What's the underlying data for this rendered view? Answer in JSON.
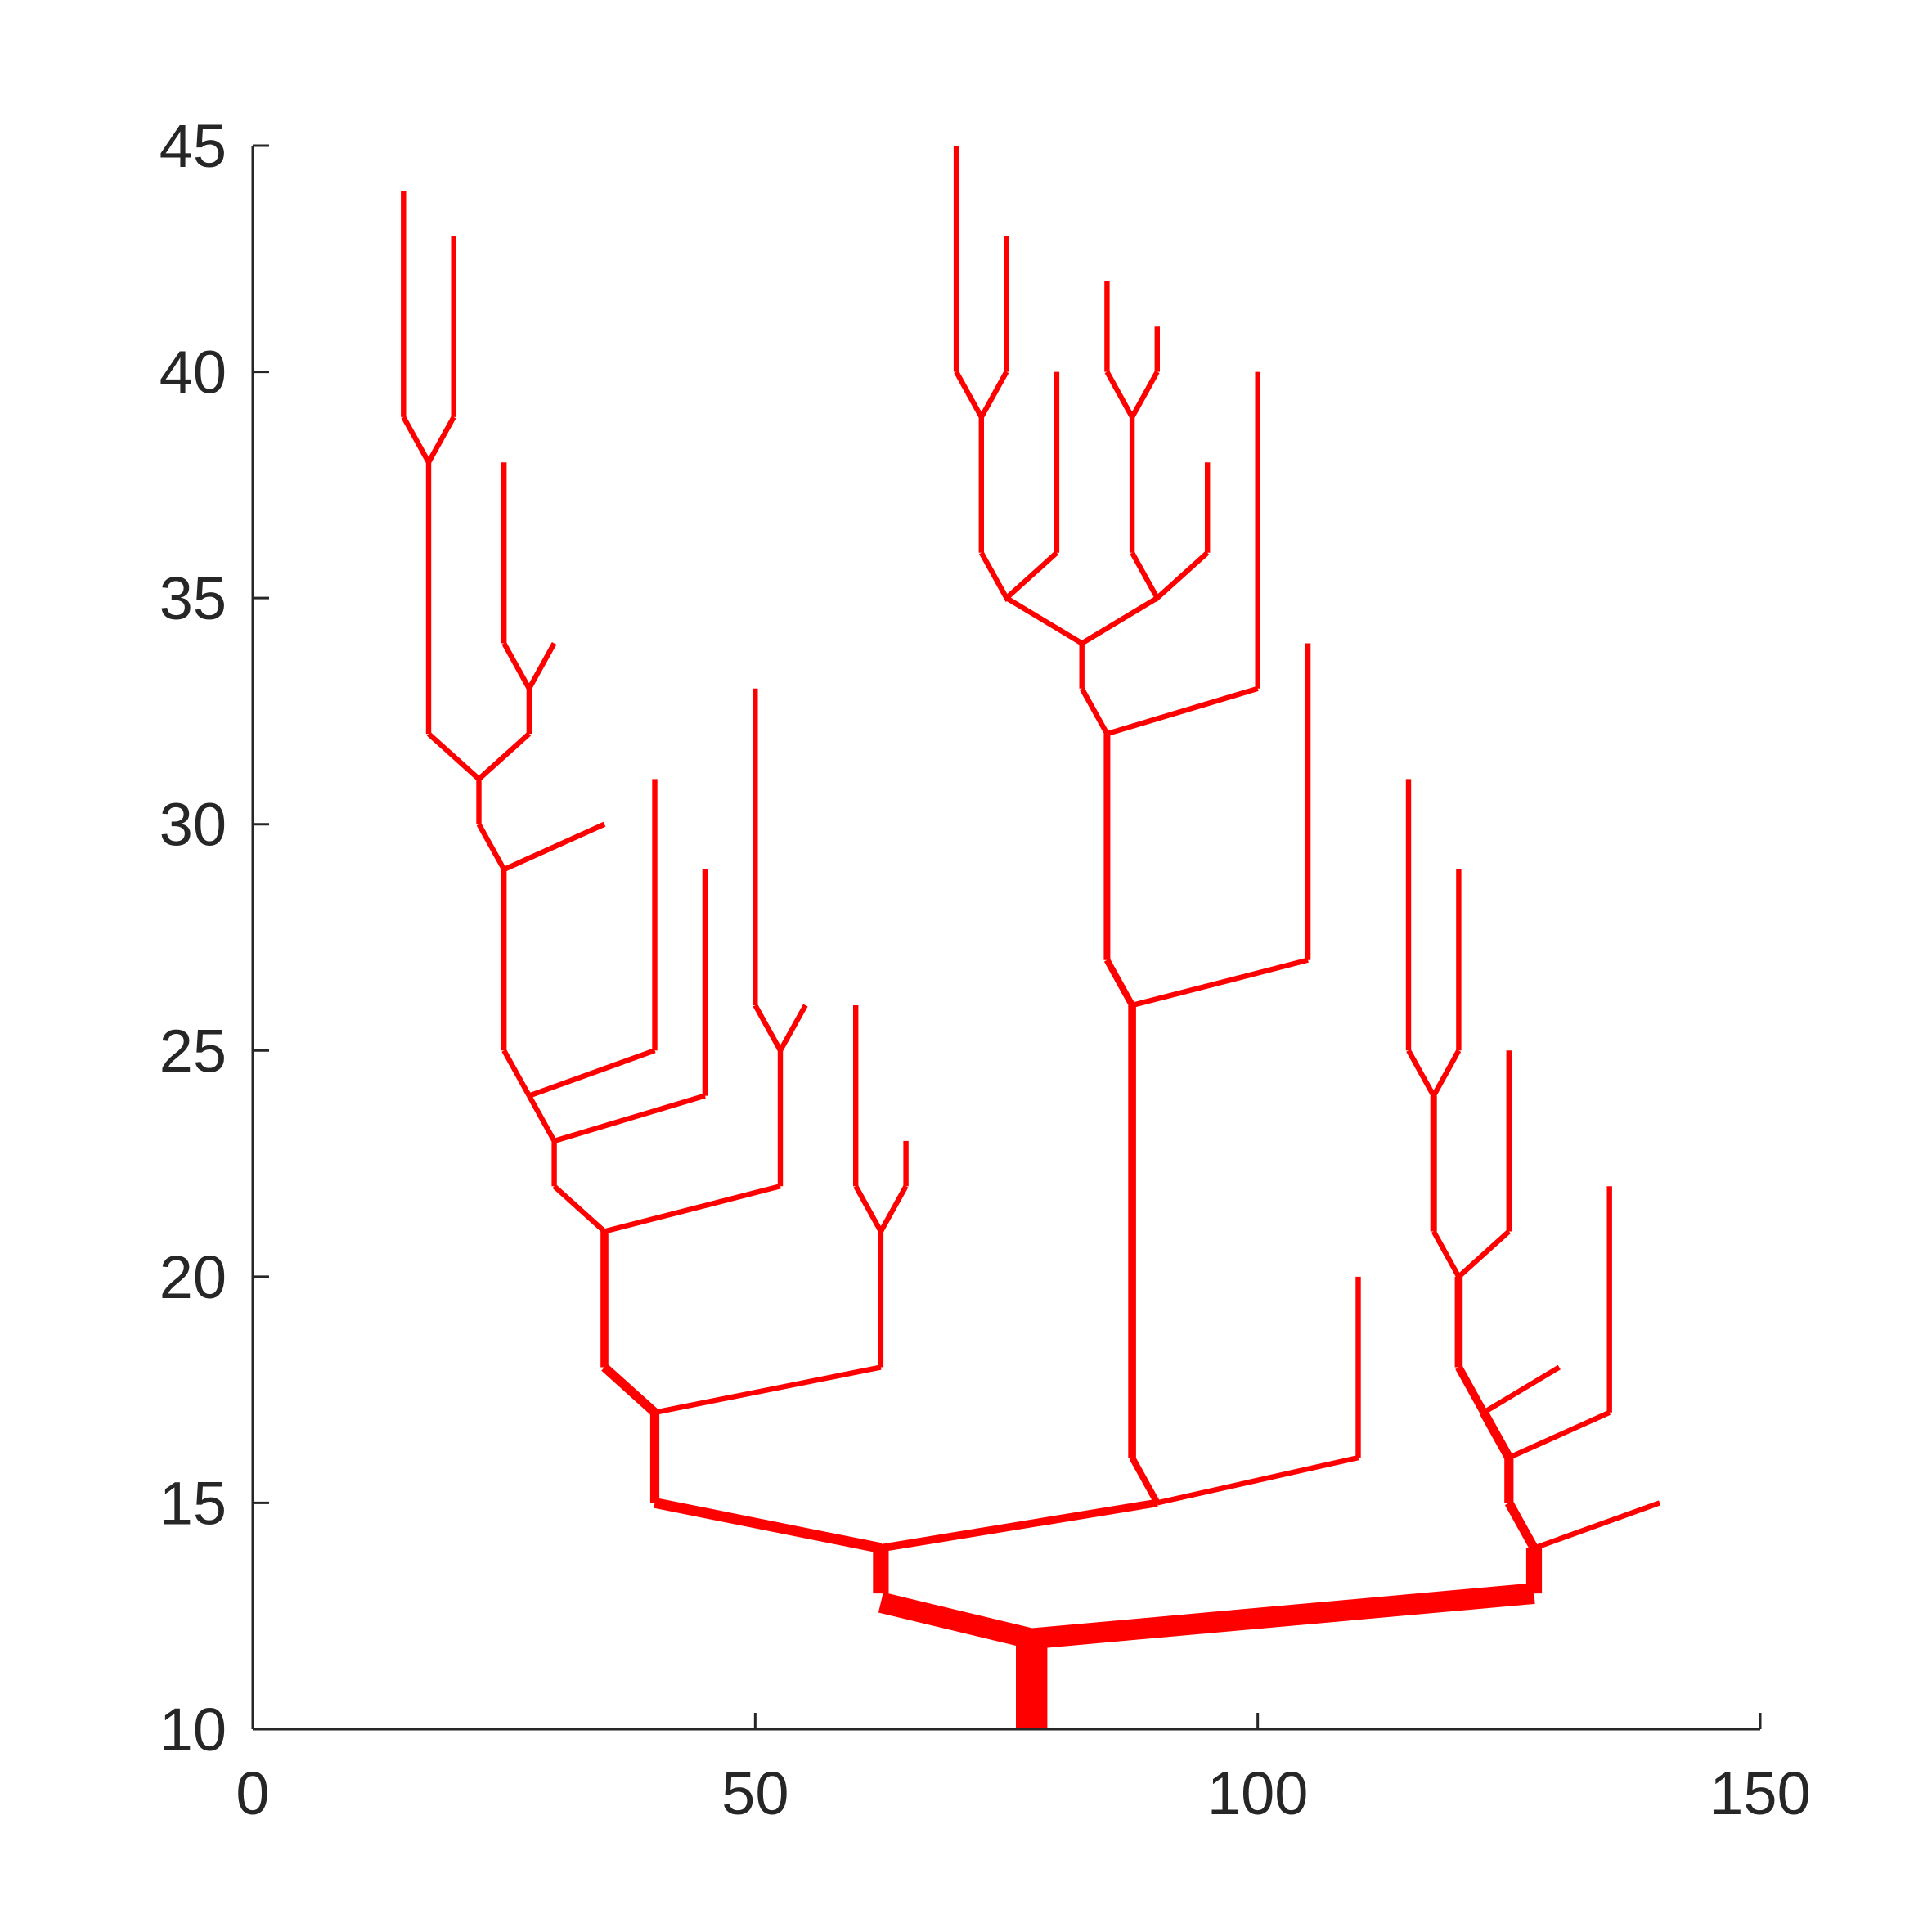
{
  "chart_data": {
    "type": "line",
    "title": "",
    "xlabel": "",
    "ylabel": "",
    "xlim": [
      0,
      150
    ],
    "ylim": [
      10,
      45
    ],
    "xticks": [
      0,
      50,
      100,
      150
    ],
    "yticks": [
      10,
      15,
      20,
      25,
      30,
      35,
      40,
      45
    ],
    "xtick_labels": [
      "0",
      "50",
      "100",
      "150"
    ],
    "ytick_labels": [
      "10",
      "15",
      "20",
      "25",
      "30",
      "35",
      "40",
      "45"
    ],
    "grid": false,
    "legend": "none",
    "color": "#ff0000",
    "series": [
      {
        "points": [
          [
            77.5,
            10
          ],
          [
            77.5,
            12
          ]
        ],
        "weight": 12
      },
      {
        "points": [
          [
            62.5,
            12.8
          ],
          [
            77.5,
            12
          ]
        ],
        "weight": 8
      },
      {
        "points": [
          [
            77.5,
            12
          ],
          [
            127.5,
            13
          ]
        ],
        "weight": 8
      },
      {
        "points": [
          [
            62.5,
            13
          ],
          [
            62.5,
            14
          ]
        ],
        "weight": 6
      },
      {
        "points": [
          [
            127.5,
            13
          ],
          [
            127.5,
            14
          ]
        ],
        "weight": 6
      },
      {
        "points": [
          [
            40,
            15
          ],
          [
            62.5,
            14
          ]
        ],
        "weight": 4
      },
      {
        "points": [
          [
            62.5,
            14
          ],
          [
            90,
            15
          ]
        ],
        "weight": 3
      },
      {
        "points": [
          [
            40,
            15
          ],
          [
            40,
            17
          ]
        ],
        "weight": 3.5
      },
      {
        "points": [
          [
            35,
            18
          ],
          [
            40,
            17
          ]
        ],
        "weight": 3.5
      },
      {
        "points": [
          [
            40,
            17
          ],
          [
            62.5,
            18
          ]
        ],
        "weight": 2
      },
      {
        "points": [
          [
            62.5,
            18
          ],
          [
            62.5,
            21
          ]
        ],
        "weight": 2
      },
      {
        "points": [
          [
            60,
            22
          ],
          [
            62.5,
            21
          ],
          [
            65,
            22
          ]
        ],
        "weight": 2
      },
      {
        "points": [
          [
            60,
            22
          ],
          [
            60,
            26
          ]
        ],
        "weight": 2
      },
      {
        "points": [
          [
            65,
            22
          ],
          [
            65,
            23
          ]
        ],
        "weight": 2
      },
      {
        "points": [
          [
            35,
            18
          ],
          [
            35,
            21
          ]
        ],
        "weight": 3
      },
      {
        "points": [
          [
            30,
            22
          ],
          [
            35,
            21
          ]
        ],
        "weight": 2
      },
      {
        "points": [
          [
            35,
            21
          ],
          [
            52.5,
            22
          ]
        ],
        "weight": 2
      },
      {
        "points": [
          [
            52.5,
            22
          ],
          [
            52.5,
            25
          ]
        ],
        "weight": 2
      },
      {
        "points": [
          [
            50,
            26
          ],
          [
            52.5,
            25
          ],
          [
            55,
            26
          ]
        ],
        "weight": 2
      },
      {
        "points": [
          [
            50,
            26
          ],
          [
            50,
            33
          ]
        ],
        "weight": 2
      },
      {
        "points": [
          [
            30,
            22
          ],
          [
            30,
            23
          ]
        ],
        "weight": 2
      },
      {
        "points": [
          [
            27.5,
            24
          ],
          [
            30,
            23
          ]
        ],
        "weight": 2
      },
      {
        "points": [
          [
            30,
            23
          ],
          [
            45,
            24
          ]
        ],
        "weight": 2
      },
      {
        "points": [
          [
            45,
            24
          ],
          [
            45,
            29
          ]
        ],
        "weight": 2
      },
      {
        "points": [
          [
            25,
            25
          ],
          [
            27.5,
            24
          ]
        ],
        "weight": 2
      },
      {
        "points": [
          [
            27.5,
            24
          ],
          [
            40,
            25
          ]
        ],
        "weight": 2
      },
      {
        "points": [
          [
            40,
            25
          ],
          [
            40,
            31
          ]
        ],
        "weight": 2
      },
      {
        "points": [
          [
            25,
            25
          ],
          [
            25,
            29
          ]
        ],
        "weight": 2
      },
      {
        "points": [
          [
            22.5,
            30
          ],
          [
            25,
            29
          ]
        ],
        "weight": 2
      },
      {
        "points": [
          [
            25,
            29
          ],
          [
            35,
            30
          ]
        ],
        "weight": 2
      },
      {
        "points": [
          [
            22.5,
            30
          ],
          [
            22.5,
            31
          ]
        ],
        "weight": 2
      },
      {
        "points": [
          [
            17.5,
            32
          ],
          [
            22.5,
            31
          ],
          [
            27.5,
            32
          ]
        ],
        "weight": 2
      },
      {
        "points": [
          [
            17.5,
            32
          ],
          [
            17.5,
            38
          ]
        ],
        "weight": 2
      },
      {
        "points": [
          [
            15,
            39
          ],
          [
            17.5,
            38
          ],
          [
            20,
            39
          ]
        ],
        "weight": 2
      },
      {
        "points": [
          [
            15,
            39
          ],
          [
            15,
            44
          ]
        ],
        "weight": 2
      },
      {
        "points": [
          [
            20,
            39
          ],
          [
            20,
            43
          ]
        ],
        "weight": 2
      },
      {
        "points": [
          [
            27.5,
            32
          ],
          [
            27.5,
            33
          ]
        ],
        "weight": 2
      },
      {
        "points": [
          [
            25,
            34
          ],
          [
            27.5,
            33
          ],
          [
            30,
            34
          ]
        ],
        "weight": 2
      },
      {
        "points": [
          [
            25,
            34
          ],
          [
            25,
            38
          ]
        ],
        "weight": 2
      },
      {
        "points": [
          [
            87.5,
            16
          ],
          [
            90,
            15
          ]
        ],
        "weight": 2.5
      },
      {
        "points": [
          [
            90,
            15
          ],
          [
            110,
            16
          ]
        ],
        "weight": 2
      },
      {
        "points": [
          [
            110,
            16
          ],
          [
            110,
            20
          ]
        ],
        "weight": 2
      },
      {
        "points": [
          [
            87.5,
            16
          ],
          [
            87.5,
            26
          ]
        ],
        "weight": 3
      },
      {
        "points": [
          [
            85,
            27
          ],
          [
            87.5,
            26
          ]
        ],
        "weight": 2.5
      },
      {
        "points": [
          [
            87.5,
            26
          ],
          [
            105,
            27
          ]
        ],
        "weight": 2
      },
      {
        "points": [
          [
            105,
            27
          ],
          [
            105,
            34
          ]
        ],
        "weight": 2
      },
      {
        "points": [
          [
            85,
            27
          ],
          [
            85,
            32
          ]
        ],
        "weight": 2.5
      },
      {
        "points": [
          [
            82.5,
            33
          ],
          [
            85,
            32
          ]
        ],
        "weight": 2
      },
      {
        "points": [
          [
            85,
            32
          ],
          [
            100,
            33
          ]
        ],
        "weight": 2
      },
      {
        "points": [
          [
            100,
            33
          ],
          [
            100,
            40
          ]
        ],
        "weight": 2
      },
      {
        "points": [
          [
            82.5,
            33
          ],
          [
            82.5,
            34
          ]
        ],
        "weight": 2
      },
      {
        "points": [
          [
            75,
            35
          ],
          [
            82.5,
            34
          ],
          [
            90,
            35
          ]
        ],
        "weight": 2
      },
      {
        "points": [
          [
            72.5,
            36
          ],
          [
            75,
            35
          ],
          [
            80,
            36
          ]
        ],
        "weight": 2
      },
      {
        "points": [
          [
            80,
            36
          ],
          [
            80,
            40
          ]
        ],
        "weight": 2
      },
      {
        "points": [
          [
            72.5,
            36
          ],
          [
            72.5,
            39
          ]
        ],
        "weight": 2
      },
      {
        "points": [
          [
            70,
            40
          ],
          [
            72.5,
            39
          ],
          [
            75,
            40
          ]
        ],
        "weight": 2
      },
      {
        "points": [
          [
            70,
            40
          ],
          [
            70,
            45
          ]
        ],
        "weight": 2
      },
      {
        "points": [
          [
            75,
            40
          ],
          [
            75,
            43
          ]
        ],
        "weight": 2
      },
      {
        "points": [
          [
            87.5,
            36
          ],
          [
            90,
            35
          ],
          [
            95,
            36
          ]
        ],
        "weight": 2
      },
      {
        "points": [
          [
            95,
            36
          ],
          [
            95,
            38
          ]
        ],
        "weight": 2
      },
      {
        "points": [
          [
            87.5,
            36
          ],
          [
            87.5,
            39
          ]
        ],
        "weight": 2
      },
      {
        "points": [
          [
            85,
            40
          ],
          [
            87.5,
            39
          ],
          [
            90,
            40
          ]
        ],
        "weight": 2
      },
      {
        "points": [
          [
            85,
            40
          ],
          [
            85,
            42
          ]
        ],
        "weight": 2
      },
      {
        "points": [
          [
            90,
            40
          ],
          [
            90,
            41
          ]
        ],
        "weight": 2
      },
      {
        "points": [
          [
            125,
            15
          ],
          [
            127.5,
            14
          ]
        ],
        "weight": 3.5
      },
      {
        "points": [
          [
            127.5,
            14
          ],
          [
            140,
            15
          ]
        ],
        "weight": 2
      },
      {
        "points": [
          [
            125,
            15
          ],
          [
            125,
            16
          ]
        ],
        "weight": 3.5
      },
      {
        "points": [
          [
            122.5,
            17
          ],
          [
            125,
            16
          ]
        ],
        "weight": 3.5
      },
      {
        "points": [
          [
            125,
            16
          ],
          [
            135,
            17
          ]
        ],
        "weight": 2
      },
      {
        "points": [
          [
            135,
            17
          ],
          [
            135,
            22
          ]
        ],
        "weight": 2
      },
      {
        "points": [
          [
            120,
            18
          ],
          [
            122.5,
            17
          ]
        ],
        "weight": 3
      },
      {
        "points": [
          [
            122.5,
            17
          ],
          [
            130,
            18
          ]
        ],
        "weight": 2
      },
      {
        "points": [
          [
            120,
            18
          ],
          [
            120,
            20
          ]
        ],
        "weight": 3
      },
      {
        "points": [
          [
            117.5,
            21
          ],
          [
            120,
            20
          ],
          [
            125,
            21
          ]
        ],
        "weight": 2
      },
      {
        "points": [
          [
            125,
            21
          ],
          [
            125,
            25
          ]
        ],
        "weight": 2
      },
      {
        "points": [
          [
            117.5,
            21
          ],
          [
            117.5,
            24
          ]
        ],
        "weight": 2.5
      },
      {
        "points": [
          [
            115,
            25
          ],
          [
            117.5,
            24
          ],
          [
            120,
            25
          ]
        ],
        "weight": 2
      },
      {
        "points": [
          [
            115,
            25
          ],
          [
            115,
            31
          ]
        ],
        "weight": 2
      },
      {
        "points": [
          [
            120,
            25
          ],
          [
            120,
            29
          ]
        ],
        "weight": 2
      }
    ]
  }
}
